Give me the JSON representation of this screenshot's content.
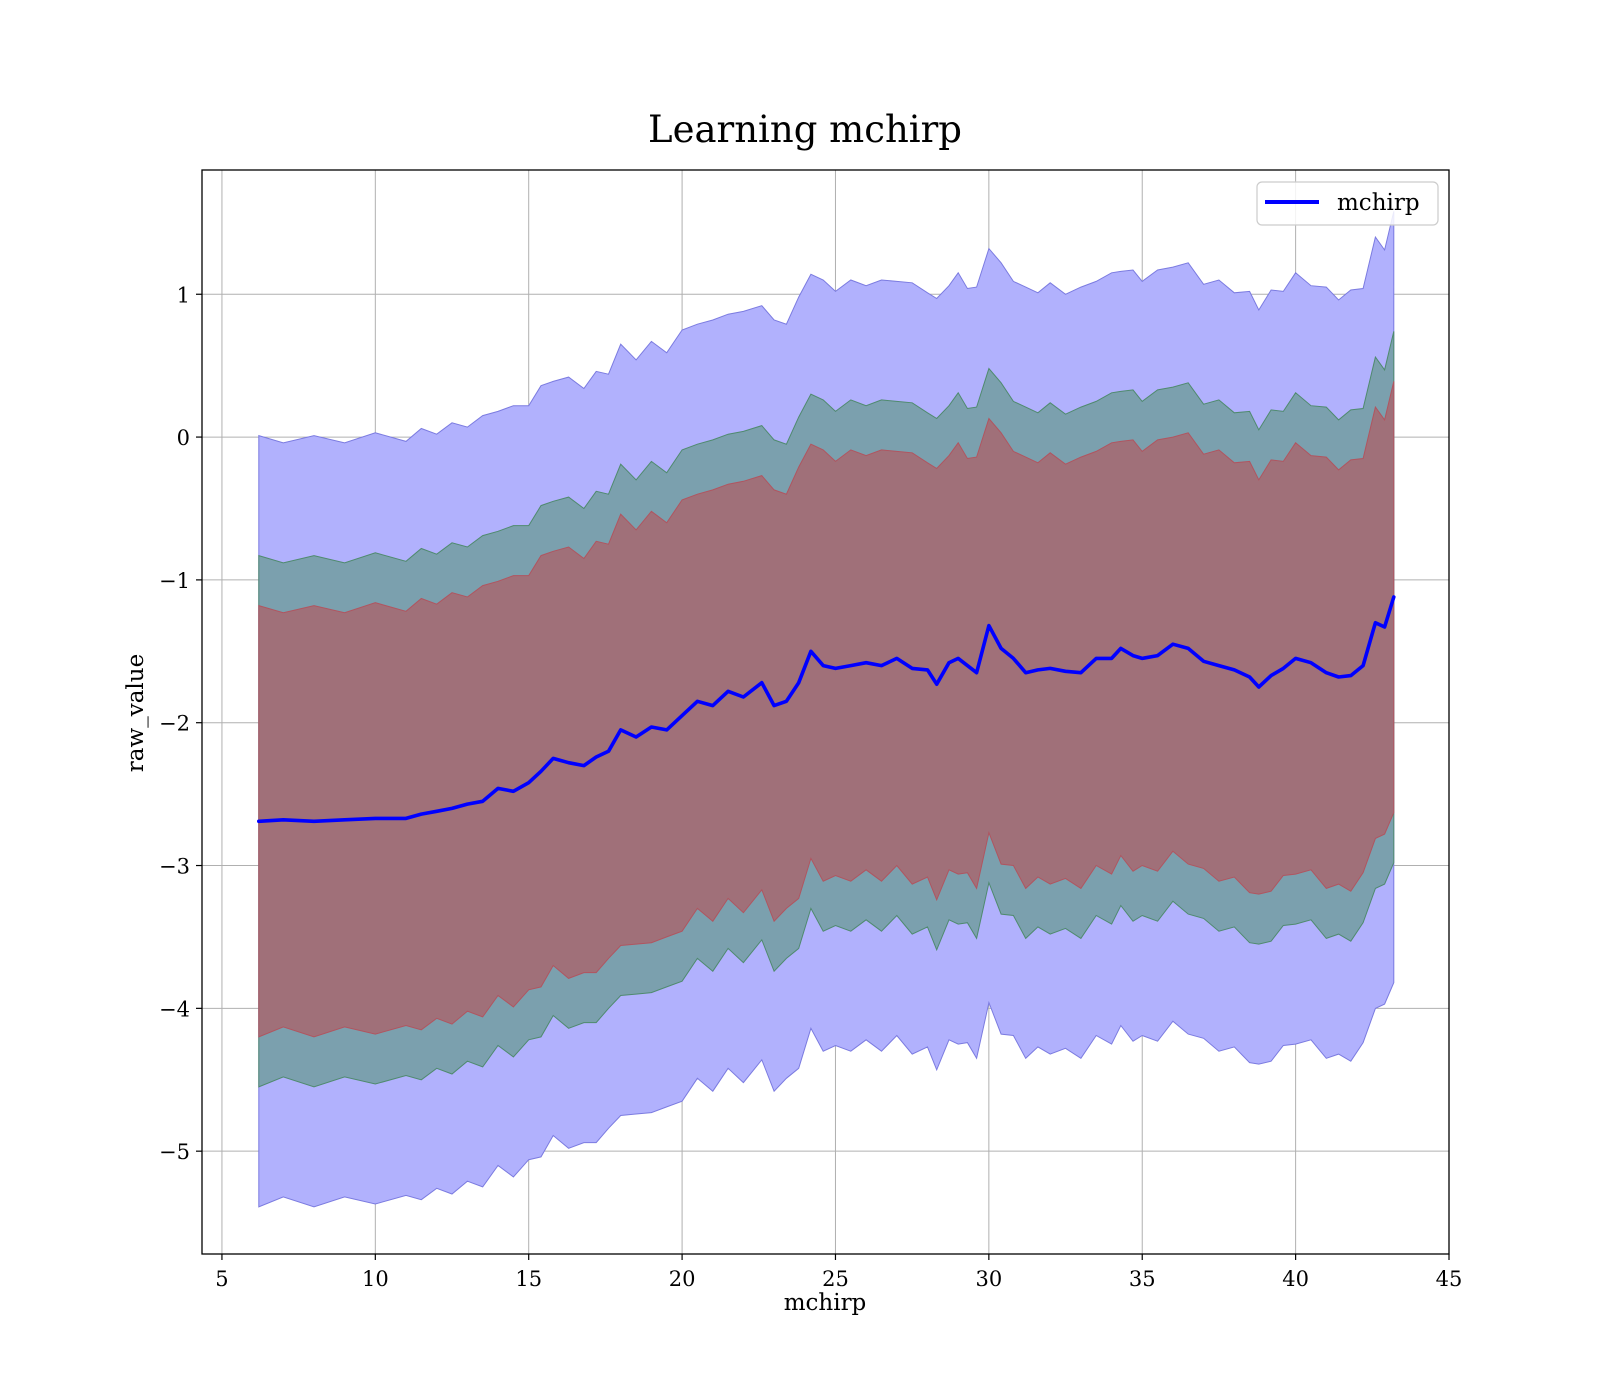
{
  "chart_data": {
    "type": "line",
    "title": "Learning mchirp",
    "xlabel": "mchirp",
    "ylabel": "raw_value",
    "xlim": [
      4.35,
      45
    ],
    "ylim": [
      -5.72,
      1.87
    ],
    "xticks": [
      5,
      10,
      15,
      20,
      25,
      30,
      35,
      40,
      45
    ],
    "yticks": [
      -5,
      -4,
      -3,
      -2,
      -1,
      0,
      1
    ],
    "ytick_labels": [
      "−5",
      "−4",
      "−3",
      "−2",
      "−1",
      "0",
      "1"
    ],
    "grid": true,
    "legend": {
      "placement": "top-right",
      "entries": [
        "mchirp"
      ]
    },
    "colors": {
      "line": "#0000ff",
      "band_outer": "#b1b1fd",
      "band_middle": "#7ba0ae",
      "band_inner": "#a07079",
      "band_outer_edge": "#7b7be0",
      "band_middle_edge": "#4f8a6e",
      "band_inner_edge": "#b05560"
    },
    "band_half_widths": {
      "outer": 2.67,
      "middle": 1.83,
      "inner": 1.48
    },
    "series": [
      {
        "name": "mchirp",
        "x": [
          6.2,
          7.0,
          8.0,
          9.0,
          10.0,
          11.0,
          11.5,
          12.0,
          12.5,
          13.0,
          13.5,
          14.0,
          14.5,
          15.0,
          15.4,
          15.8,
          16.3,
          16.8,
          17.2,
          17.6,
          18.0,
          18.5,
          19.0,
          19.5,
          20.0,
          20.5,
          21.0,
          21.5,
          22.0,
          22.6,
          23.0,
          23.4,
          23.8,
          24.2,
          24.6,
          25.0,
          25.5,
          26.0,
          26.5,
          27.0,
          27.5,
          28.0,
          28.3,
          28.7,
          29.0,
          29.3,
          29.6,
          30.0,
          30.4,
          30.8,
          31.2,
          31.6,
          32.0,
          32.5,
          33.0,
          33.5,
          34.0,
          34.3,
          34.7,
          35.0,
          35.5,
          36.0,
          36.5,
          37.0,
          37.5,
          38.0,
          38.5,
          38.8,
          39.2,
          39.6,
          40.0,
          40.5,
          41.0,
          41.4,
          41.8,
          42.2,
          42.6,
          42.9,
          43.2
        ],
        "y": [
          -2.69,
          -2.68,
          -2.69,
          -2.68,
          -2.67,
          -2.67,
          -2.64,
          -2.62,
          -2.6,
          -2.57,
          -2.55,
          -2.46,
          -2.48,
          -2.42,
          -2.34,
          -2.25,
          -2.28,
          -2.3,
          -2.24,
          -2.2,
          -2.05,
          -2.1,
          -2.03,
          -2.05,
          -1.95,
          -1.85,
          -1.88,
          -1.78,
          -1.82,
          -1.72,
          -1.88,
          -1.85,
          -1.72,
          -1.5,
          -1.6,
          -1.62,
          -1.6,
          -1.58,
          -1.6,
          -1.55,
          -1.62,
          -1.63,
          -1.73,
          -1.58,
          -1.55,
          -1.6,
          -1.65,
          -1.32,
          -1.48,
          -1.55,
          -1.65,
          -1.63,
          -1.62,
          -1.64,
          -1.65,
          -1.55,
          -1.55,
          -1.48,
          -1.53,
          -1.55,
          -1.53,
          -1.45,
          -1.48,
          -1.57,
          -1.6,
          -1.63,
          -1.68,
          -1.75,
          -1.67,
          -1.62,
          -1.55,
          -1.58,
          -1.65,
          -1.68,
          -1.67,
          -1.6,
          -1.3,
          -1.33,
          -1.12
        ]
      }
    ]
  }
}
